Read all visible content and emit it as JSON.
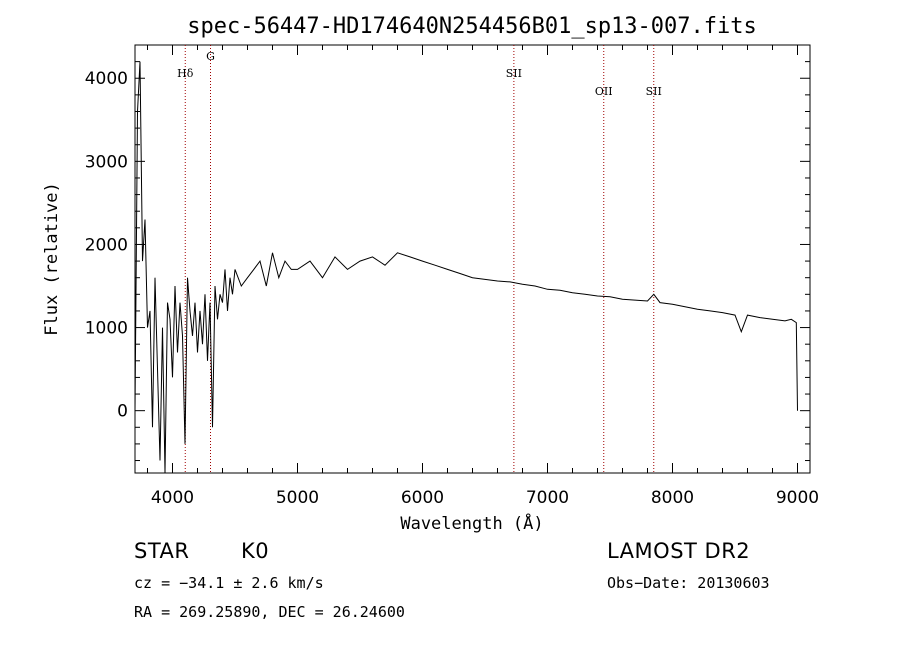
{
  "chart_data": {
    "type": "line",
    "title": "spec-56447-HD174640N254456B01_sp13-007.fits",
    "xlabel": "Wavelength (Å)",
    "ylabel": "Flux (relative)",
    "xlim": [
      3700,
      9100
    ],
    "ylim": [
      -750,
      4400
    ],
    "xticks": [
      4000,
      5000,
      6000,
      7000,
      8000,
      9000
    ],
    "yticks": [
      0,
      1000,
      2000,
      3000,
      4000
    ],
    "grid": false,
    "series": [
      {
        "x": [
          3700,
          3720,
          3740,
          3760,
          3780,
          3800,
          3820,
          3840,
          3860,
          3880,
          3900,
          3920,
          3940,
          3960,
          3980,
          4000,
          4020,
          4040,
          4060,
          4080,
          4100,
          4120,
          4140,
          4160,
          4180,
          4200,
          4220,
          4240,
          4260,
          4280,
          4300,
          4320,
          4340,
          4360,
          4380,
          4400,
          4420,
          4440,
          4460,
          4480,
          4500,
          4550,
          4600,
          4650,
          4700,
          4750,
          4800,
          4850,
          4900,
          4950,
          5000,
          5100,
          5200,
          5300,
          5400,
          5500,
          5600,
          5700,
          5800,
          5900,
          6000,
          6100,
          6200,
          6300,
          6400,
          6500,
          6600,
          6700,
          6800,
          6900,
          7000,
          7100,
          7200,
          7300,
          7400,
          7500,
          7600,
          7700,
          7800,
          7850,
          7900,
          8000,
          8100,
          8200,
          8300,
          8400,
          8500,
          8550,
          8600,
          8700,
          8800,
          8900,
          8950,
          8990,
          9000
        ],
        "y": [
          0,
          3600,
          4200,
          1800,
          2300,
          1000,
          1200,
          -200,
          1600,
          500,
          -600,
          1000,
          -800,
          1300,
          1100,
          400,
          1500,
          700,
          1300,
          900,
          -400,
          1600,
          1200,
          900,
          1300,
          700,
          1200,
          800,
          1400,
          600,
          1300,
          -200,
          1500,
          1100,
          1400,
          1300,
          1700,
          1200,
          1600,
          1400,
          1700,
          1500,
          1600,
          1700,
          1800,
          1500,
          1900,
          1600,
          1800,
          1700,
          1700,
          1800,
          1600,
          1850,
          1700,
          1800,
          1850,
          1750,
          1900,
          1850,
          1800,
          1750,
          1700,
          1650,
          1600,
          1580,
          1560,
          1550,
          1520,
          1500,
          1460,
          1450,
          1420,
          1400,
          1380,
          1370,
          1340,
          1330,
          1320,
          1400,
          1300,
          1280,
          1250,
          1220,
          1200,
          1180,
          1150,
          950,
          1150,
          1120,
          1100,
          1080,
          1100,
          1060,
          0
        ]
      }
    ],
    "lines": [
      {
        "label": "Hδ",
        "x": 4102,
        "pos": "top"
      },
      {
        "label": "G",
        "x": 4304,
        "pos": "higher"
      },
      {
        "label": "SII",
        "x": 6731,
        "pos": "top"
      },
      {
        "label": "OII",
        "x": 7450,
        "pos": "low"
      },
      {
        "label": "SII",
        "x": 7850,
        "pos": "low"
      }
    ]
  },
  "info": {
    "class": "STAR",
    "subclass": "K0",
    "survey": "LAMOST DR2",
    "cz": "cz = −34.1 ± 2.6 km/s",
    "obsdate": "Obs−Date: 20130603",
    "radec": "RA = 269.25890, DEC =  26.24600"
  }
}
